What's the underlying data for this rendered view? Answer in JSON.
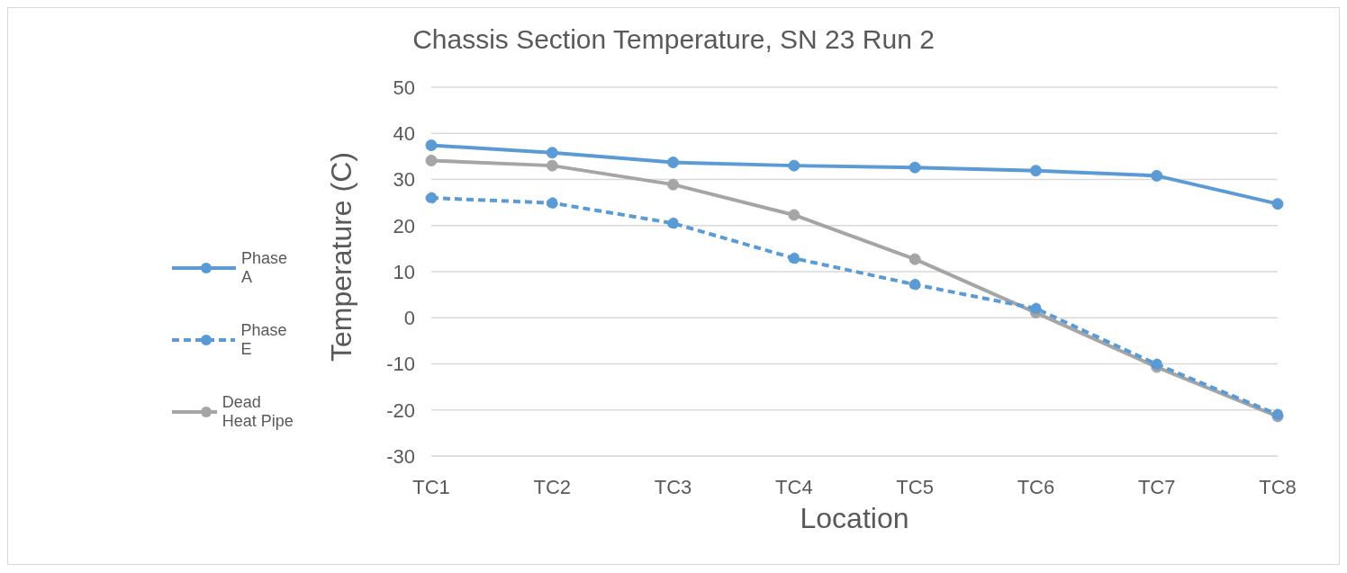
{
  "chart_data": {
    "type": "line",
    "title": "Chassis Section Temperature, SN 23 Run 2",
    "xlabel": "Location",
    "ylabel": "Temperature (C)",
    "categories": [
      "TC1",
      "TC2",
      "TC3",
      "TC4",
      "TC5",
      "TC6",
      "TC7",
      "TC8"
    ],
    "series": [
      {
        "name": "Phase A",
        "color": "#5b9bd5",
        "line_style": "solid",
        "values": [
          37.4,
          35.8,
          33.7,
          33.0,
          32.6,
          31.9,
          30.8,
          24.7
        ]
      },
      {
        "name": "Phase E",
        "color": "#5b9bd5",
        "line_style": "dashed",
        "values": [
          26.0,
          24.9,
          20.5,
          12.9,
          7.2,
          2.0,
          -10.1,
          -21.0
        ]
      },
      {
        "name": "Dead Heat Pipe",
        "color": "#a5a5a5",
        "line_style": "solid",
        "values": [
          34.1,
          33.0,
          28.9,
          22.3,
          12.7,
          1.1,
          -10.7,
          -21.4
        ]
      }
    ],
    "ylim": [
      -30,
      50
    ],
    "yticks": [
      -30,
      -20,
      -10,
      0,
      10,
      20,
      30,
      40,
      50
    ],
    "grid": "y",
    "legend": "left",
    "marker": "circle"
  }
}
